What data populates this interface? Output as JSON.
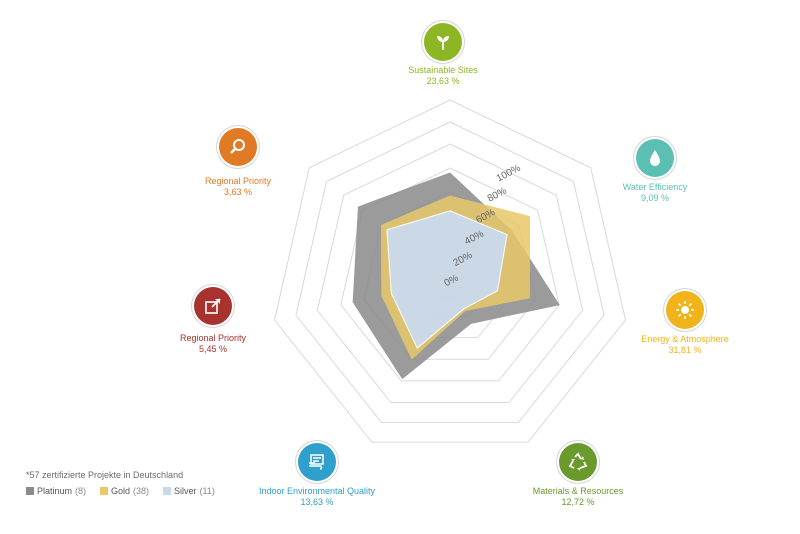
{
  "chart_data": {
    "type": "radar",
    "categories": [
      {
        "name": "Sustainable Sites",
        "weight": "23,63 %",
        "color": "#8cb624",
        "icon": "sprout-icon"
      },
      {
        "name": "Water Efficiency",
        "weight": "9,09 %",
        "color": "#5cbfb3",
        "icon": "water-drop-icon"
      },
      {
        "name": "Energy & Atmosphere",
        "weight": "31,81 %",
        "color": "#f0b31a",
        "icon": "sun-icon"
      },
      {
        "name": "Materials & Resources",
        "weight": "12,72 %",
        "color": "#6a9a2b",
        "icon": "recycle-icon"
      },
      {
        "name": "Indoor Environmental Quality",
        "weight": "13,63 %",
        "color": "#2f9fcb",
        "icon": "air-flow-icon"
      },
      {
        "name": "Regional Priority",
        "weight": "5,45 %",
        "color": "#a8322d",
        "icon": "external-link-icon"
      },
      {
        "name": "Regional Priority",
        "weight": "3,63 %",
        "color": "#e07a24",
        "icon": "magnifier-icon"
      }
    ],
    "radial_ticks": [
      "0%",
      "20%",
      "40%",
      "60%",
      "80%",
      "100%"
    ],
    "range": [
      0,
      100
    ],
    "series": [
      {
        "name": "Platinum",
        "count": "(8)",
        "color": "#8a8a8a",
        "values": [
          84,
          62,
          88,
          38,
          86,
          78,
          92
        ]
      },
      {
        "name": "Gold",
        "count": "(38)",
        "color": "#e8c86a",
        "values": [
          66,
          80,
          64,
          27,
          69,
          55,
          69
        ]
      },
      {
        "name": "Silver",
        "count": "(11)",
        "color": "#c9d9ec",
        "values": [
          54,
          57,
          38,
          25,
          59,
          47,
          63
        ]
      }
    ]
  },
  "footnote": "*57 zertifizierte Projekte in Deutschland"
}
